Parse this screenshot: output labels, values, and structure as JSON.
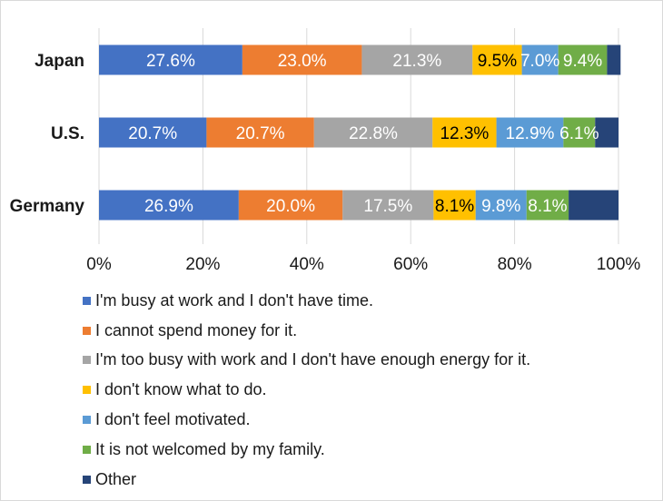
{
  "chart_data": {
    "type": "bar",
    "orientation": "horizontal",
    "stacked": true,
    "percent_scale": true,
    "categories": [
      "Japan",
      "U.S.",
      "Germany"
    ],
    "series": [
      {
        "name": "I'm busy at work and I don't have time.",
        "color": "#4472C4",
        "text_color": "#ffffff",
        "values": [
          27.6,
          20.7,
          26.9
        ]
      },
      {
        "name": "I cannot spend money for it.",
        "color": "#ED7D31",
        "text_color": "#ffffff",
        "values": [
          23.0,
          20.7,
          20.0
        ]
      },
      {
        "name": "I'm too busy with work and I don't have enough energy for it.",
        "color": "#A5A5A5",
        "text_color": "#ffffff",
        "values": [
          21.3,
          22.8,
          17.5
        ]
      },
      {
        "name": "I don't know what to do.",
        "color": "#FFC000",
        "text_color": "#000000",
        "values": [
          9.5,
          12.3,
          8.1
        ]
      },
      {
        "name": "I don't feel motivated.",
        "color": "#5B9BD5",
        "text_color": "#ffffff",
        "values": [
          7.0,
          12.9,
          9.8
        ]
      },
      {
        "name": "It is not welcomed by my family.",
        "color": "#70AD47",
        "text_color": "#ffffff",
        "values": [
          9.4,
          6.1,
          8.1
        ]
      },
      {
        "name": "Other",
        "color": "#264478",
        "text_color": "#ffffff",
        "values": [
          2.6,
          4.5,
          9.6
        ]
      }
    ],
    "data_labels": [
      [
        "27.6%",
        "20.7%",
        "26.9%"
      ],
      [
        "23.0%",
        "20.7%",
        "20.0%"
      ],
      [
        "21.3%",
        "22.8%",
        "17.5%"
      ],
      [
        "9.5%",
        "12.3%",
        "8.1%"
      ],
      [
        "7.0%",
        "12.9%",
        "9.8%"
      ],
      [
        "9.4%",
        "6.1%",
        "8.1%"
      ],
      [
        "",
        "",
        ""
      ]
    ],
    "x_ticks": [
      "0%",
      "20%",
      "40%",
      "60%",
      "80%",
      "100%"
    ],
    "xlim": [
      0,
      100
    ],
    "gridlines": "vertical",
    "legend_position": "bottom"
  }
}
